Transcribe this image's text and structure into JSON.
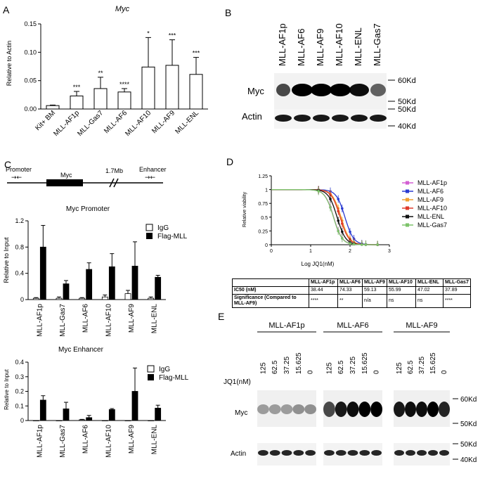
{
  "panels": {
    "A": "A",
    "B": "B",
    "C": "C",
    "D": "D",
    "E": "E"
  },
  "panelA": {
    "title": "Myc",
    "ylabel": "Relative to Actin"
  },
  "panelB": {
    "lanes": [
      "MLL-AF1p",
      "MLL-AF6",
      "MLL-AF9",
      "MLL-AF10",
      "MLL-ENL",
      "MLL-Gas7"
    ],
    "row_labels": [
      "Myc",
      "Actin"
    ],
    "markers": [
      "60Kd",
      "50Kd",
      "50Kd",
      "40Kd"
    ]
  },
  "panelC": {
    "diagram": {
      "promoter": "Promoter",
      "gene": "Myc",
      "distance": "1.7Mb",
      "enhancer": "Enhancer"
    },
    "ylabel": "Relative to Input",
    "legend": [
      "IgG",
      "Flag-MLL"
    ]
  },
  "panelD": {
    "xlabel": "Log JQ1(nM)",
    "ylabel": "Relative viability",
    "table": {
      "headers": [
        "",
        "MLL-AF1p",
        "MLL-AF6",
        "MLL-AF9",
        "MLL-AF10",
        "MLL-ENL",
        "MLL-Gas7"
      ],
      "rows": [
        [
          "IC50 (nM)",
          "38.44",
          "74.33",
          "59.13",
          "55.99",
          "47.02",
          "37.89"
        ],
        [
          "Significance (Compared to MLL-AF9)",
          "****",
          "**",
          "n/a",
          "ns",
          "ns",
          "****"
        ]
      ]
    }
  },
  "panelE": {
    "groups": [
      "MLL-AF1p",
      "MLL-AF6",
      "MLL-AF9"
    ],
    "doses": [
      "125",
      "62.5",
      "37.25",
      "15.625",
      "0"
    ],
    "dose_label": "JQ1(nM)",
    "row_labels": [
      "Myc",
      "Actin"
    ],
    "markers": [
      "60Kd",
      "50Kd",
      "50Kd",
      "40Kd"
    ]
  },
  "chart_data": [
    {
      "type": "bar",
      "title": "Myc",
      "ylabel": "Relative to Actin",
      "categories": [
        "Kit+ BM",
        "MLL-AF1p",
        "MLL-Gas7",
        "MLL-AF6",
        "MLL-AF10",
        "MLL-AF9",
        "MLL-ENL"
      ],
      "values": [
        0.006,
        0.023,
        0.036,
        0.03,
        0.074,
        0.077,
        0.061
      ],
      "errors": [
        0.001,
        0.008,
        0.02,
        0.006,
        0.052,
        0.045,
        0.03
      ],
      "significance": [
        "",
        "***",
        "**",
        "****",
        "*",
        "***",
        "***"
      ],
      "ylim": [
        0,
        0.15
      ],
      "yticks": [
        "0.00",
        "0.05",
        "0.10",
        "0.15"
      ]
    },
    {
      "type": "bar",
      "title": "Myc Promoter",
      "ylabel": "Relative to Input",
      "categories": [
        "MLL-AF1p",
        "MLL-Gas7",
        "MLL-AF6",
        "MLL-AF10",
        "MLL-AF9",
        "MLL-ENL"
      ],
      "series": [
        {
          "name": "IgG",
          "values": [
            0.02,
            0.02,
            0.02,
            0.04,
            0.09,
            0.02
          ],
          "errors": [
            0.01,
            0.02,
            0.01,
            0.03,
            0.05,
            0.02
          ]
        },
        {
          "name": "Flag-MLL",
          "values": [
            0.8,
            0.24,
            0.46,
            0.5,
            0.51,
            0.34
          ],
          "errors": [
            0.33,
            0.05,
            0.1,
            0.2,
            0.37,
            0.03
          ]
        }
      ],
      "ylim": [
        0,
        1.2
      ],
      "yticks": [
        "0",
        "0.4",
        "0.8",
        "1.2"
      ]
    },
    {
      "type": "bar",
      "title": "Myc Enhancer",
      "ylabel": "Relative to Input",
      "categories": [
        "MLL-AF1p",
        "MLL-Gas7",
        "MLL-AF6",
        "MLL-AF10",
        "MLL-AF9",
        "MLL-ENL"
      ],
      "series": [
        {
          "name": "IgG",
          "values": [
            0.0,
            0.0,
            0.005,
            0.0,
            0.0,
            0.0
          ],
          "errors": [
            0,
            0,
            0.003,
            0,
            0,
            0
          ]
        },
        {
          "name": "Flag-MLL",
          "values": [
            0.14,
            0.08,
            0.02,
            0.075,
            0.2,
            0.085
          ],
          "errors": [
            0.03,
            0.045,
            0.015,
            0.007,
            0.16,
            0.02
          ]
        }
      ],
      "ylim": [
        0,
        0.4
      ],
      "yticks": [
        "0",
        "0.1",
        "0.2",
        "0.3",
        "0.4"
      ]
    },
    {
      "type": "line",
      "xlabel": "Log JQ1(nM)",
      "ylabel": "Relative viability",
      "xlim": [
        0,
        3
      ],
      "ylim": [
        0,
        1.25
      ],
      "xticks": [
        "0",
        "1",
        "2",
        "3"
      ],
      "yticks": [
        "0",
        "0.25",
        "0.5",
        "0.75",
        "1",
        "1.25"
      ],
      "x": [
        1.2,
        1.5,
        1.7,
        1.8,
        2.0,
        2.1,
        2.3,
        2.4,
        2.7
      ],
      "series": [
        {
          "name": "MLL-AF1p",
          "color": "#d35fd3",
          "logIC50": 1.585
        },
        {
          "name": "MLL-AF6",
          "color": "#2a3bd1",
          "logIC50": 1.871
        },
        {
          "name": "MLL-AF9",
          "color": "#f0a030",
          "logIC50": 1.772
        },
        {
          "name": "MLL-AF10",
          "color": "#e03a2a",
          "logIC50": 1.748
        },
        {
          "name": "MLL-ENL",
          "color": "#111111",
          "logIC50": 1.672
        },
        {
          "name": "MLL-Gas7",
          "color": "#7cc36a",
          "logIC50": 1.579
        }
      ]
    }
  ]
}
